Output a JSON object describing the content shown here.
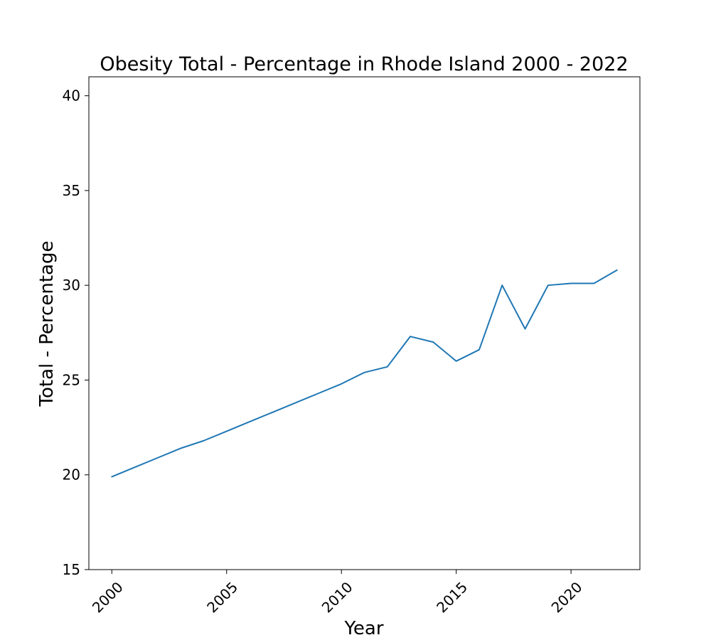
{
  "chart_data": {
    "type": "line",
    "title": "Obesity Total - Percentage in Rhode Island 2000 - 2022",
    "xlabel": "Year",
    "ylabel": "Total - Percentage",
    "xlim": [
      1999,
      2023
    ],
    "ylim": [
      15,
      41
    ],
    "xticks": [
      2000,
      2005,
      2010,
      2015,
      2020
    ],
    "yticks": [
      15,
      20,
      25,
      30,
      35,
      40
    ],
    "grid": false,
    "series": [
      {
        "color": "#1f77b4",
        "x": [
          2000,
          2001,
          2002,
          2003,
          2004,
          2005,
          2006,
          2007,
          2008,
          2009,
          2010,
          2011,
          2012,
          2013,
          2014,
          2015,
          2016,
          2017,
          2018,
          2019,
          2020,
          2021,
          2022
        ],
        "y": [
          19.9,
          20.4,
          20.9,
          21.4,
          21.8,
          22.3,
          22.8,
          23.3,
          23.8,
          24.3,
          24.8,
          25.4,
          25.7,
          27.3,
          27.0,
          26.0,
          26.6,
          30.0,
          27.7,
          30.0,
          30.1,
          30.1,
          30.8
        ]
      }
    ]
  }
}
